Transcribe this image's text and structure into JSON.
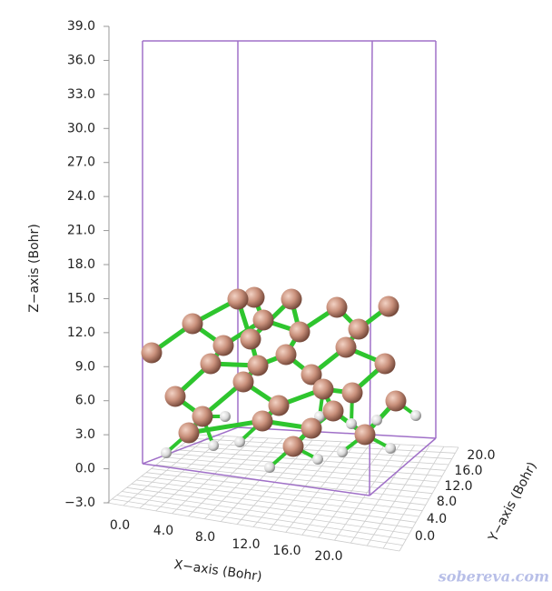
{
  "z_axis": {
    "label": "Z−axis (Bohr)",
    "ticks": [
      "39.0",
      "36.0",
      "33.0",
      "30.0",
      "27.0",
      "24.0",
      "21.0",
      "18.0",
      "15.0",
      "12.0",
      "9.0",
      "6.0",
      "3.0",
      "0.0",
      "−3.0"
    ]
  },
  "x_axis": {
    "label": "X−axis (Bohr)",
    "ticks": [
      "0.0",
      "4.0",
      "8.0",
      "12.0",
      "16.0",
      "20.0"
    ]
  },
  "y_axis": {
    "label": "Y−axis (Bohr)",
    "ticks": [
      "0.0",
      "4.0",
      "8.0",
      "12.0",
      "16.0",
      "20.0"
    ]
  },
  "watermark": "sobereva.com"
}
